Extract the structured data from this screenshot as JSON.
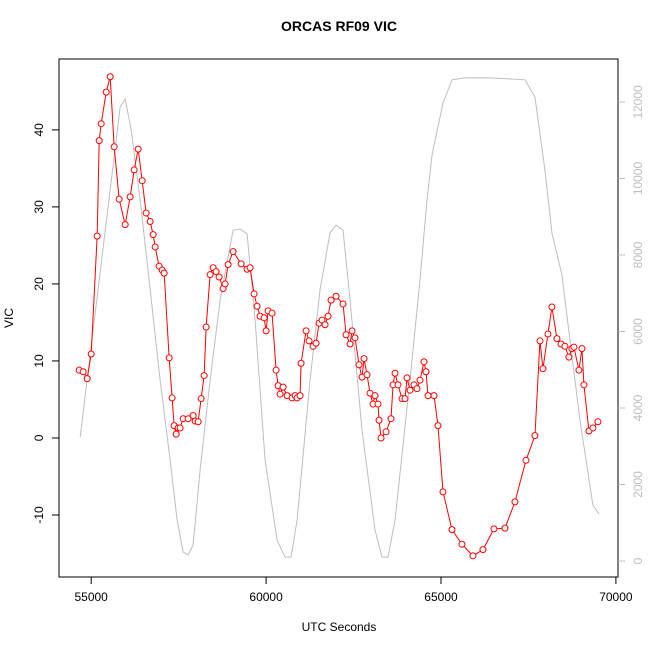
{
  "chart_data": {
    "type": "line",
    "title": "ORCAS RF09 VIC",
    "x_label": "UTC Seconds",
    "y_label": "VIC",
    "xlim": [
      54080,
      70060
    ],
    "ylim": [
      -18.05,
      49.2
    ],
    "y2lim": [
      -418,
      13124
    ],
    "xticks": [
      55000,
      60000,
      65000,
      70000
    ],
    "yticks": [
      -10,
      0,
      10,
      20,
      30,
      40
    ],
    "y2ticks": [
      0,
      2000,
      4000,
      6000,
      8000,
      10000,
      12000
    ],
    "series": [
      {
        "color": "#ff0000",
        "axis": "y",
        "markers": true,
        "x": [
          54657,
          54771,
          54886,
          55000,
          55171,
          55229,
          55286,
          55429,
          55543,
          55657,
          55800,
          55971,
          56114,
          56229,
          56343,
          56457,
          56571,
          56686,
          56771,
          56829,
          56943,
          57029,
          57086,
          57229,
          57314,
          57371,
          57429,
          57486,
          57543,
          57629,
          57771,
          57914,
          57971,
          58057,
          58143,
          58229,
          58286,
          58400,
          58486,
          58571,
          58657,
          58771,
          58829,
          58914,
          59057,
          59286,
          59457,
          59543,
          59657,
          59743,
          59829,
          59943,
          60000,
          60057,
          60171,
          60286,
          60343,
          60400,
          60486,
          60600,
          60743,
          60829,
          60886,
          60971,
          61000,
          61143,
          61229,
          61343,
          61429,
          61514,
          61600,
          61686,
          61771,
          61857,
          62000,
          62200,
          62286,
          62400,
          62457,
          62543,
          62657,
          62743,
          62800,
          62886,
          62971,
          63057,
          63114,
          63200,
          63229,
          63286,
          63429,
          63571,
          63629,
          63686,
          63771,
          63886,
          63971,
          64029,
          64114,
          64229,
          64314,
          64400,
          64514,
          64571,
          64629,
          64800,
          64914,
          65057,
          65314,
          65600,
          65914,
          66200,
          66514,
          66829,
          67114,
          67429,
          67686,
          67829,
          67914,
          68057,
          68171,
          68314,
          68429,
          68543,
          68657,
          68743,
          68800,
          68943,
          69029,
          69086,
          69229,
          69343,
          69486
        ],
        "values": [
          8.8,
          8.6,
          7.7,
          10.9,
          26.2,
          38.6,
          40.8,
          44.9,
          46.9,
          37.8,
          31.0,
          27.7,
          31.3,
          34.8,
          37.5,
          33.4,
          29.2,
          28.1,
          26.4,
          24.8,
          22.3,
          21.8,
          21.4,
          10.4,
          5.2,
          1.6,
          0.5,
          1.3,
          1.3,
          2.5,
          2.5,
          2.9,
          2.2,
          2.1,
          5.1,
          8.1,
          14.4,
          21.2,
          22.1,
          21.6,
          20.9,
          19.4,
          20.0,
          22.5,
          24.2,
          22.6,
          21.9,
          22.1,
          18.7,
          17.1,
          15.8,
          15.6,
          13.9,
          16.5,
          16.2,
          8.8,
          6.8,
          5.7,
          6.6,
          5.5,
          5.2,
          5.5,
          5.2,
          5.5,
          9.7,
          13.9,
          12.6,
          11.9,
          12.3,
          14.9,
          15.3,
          14.7,
          15.8,
          17.9,
          18.4,
          17.4,
          13.4,
          12.2,
          13.9,
          13.0,
          9.5,
          7.9,
          10.3,
          8.2,
          5.8,
          4.4,
          5.5,
          4.4,
          2.3,
          0.0,
          0.8,
          2.5,
          6.9,
          8.4,
          6.9,
          5.1,
          5.1,
          7.8,
          6.2,
          6.9,
          6.4,
          7.5,
          9.9,
          8.6,
          5.5,
          5.5,
          1.6,
          -7.0,
          -11.9,
          -13.8,
          -15.3,
          -14.5,
          -11.8,
          -11.7,
          -8.3,
          -2.9,
          0.3,
          12.6,
          9.0,
          13.5,
          17.0,
          12.9,
          12.2,
          11.9,
          10.5,
          11.6,
          11.8,
          8.8,
          11.6,
          6.9,
          0.9,
          1.3,
          2.1
        ]
      },
      {
        "color": "#bebebe",
        "axis": "y2",
        "markers": false,
        "x": [
          54686,
          55829,
          55971,
          56143,
          56400,
          56686,
          56971,
          57257,
          57457,
          57629,
          57771,
          57914,
          58114,
          58400,
          58686,
          59057,
          59257,
          59457,
          59686,
          59971,
          60314,
          60543,
          60714,
          60886,
          61257,
          61543,
          61829,
          62000,
          62200,
          62400,
          62743,
          63114,
          63314,
          63486,
          63686,
          64114,
          64400,
          64600,
          64743,
          65057,
          65314,
          65686,
          66400,
          67400,
          67686,
          67971,
          68171,
          68457,
          68686,
          68971,
          69343,
          69514
        ],
        "values": [
          3240,
          11870,
          12080,
          11270,
          9440,
          7090,
          4730,
          2640,
          1070,
          235,
          157,
          420,
          2380,
          4730,
          6820,
          8650,
          8680,
          8550,
          6300,
          2640,
          550,
          100,
          100,
          1070,
          4730,
          7090,
          8580,
          8780,
          8650,
          6820,
          3420,
          810,
          100,
          100,
          1070,
          4730,
          7350,
          9440,
          10610,
          11970,
          12580,
          12630,
          12630,
          12580,
          12130,
          10220,
          8580,
          7480,
          5780,
          3690,
          1460,
          1230
        ]
      }
    ]
  }
}
